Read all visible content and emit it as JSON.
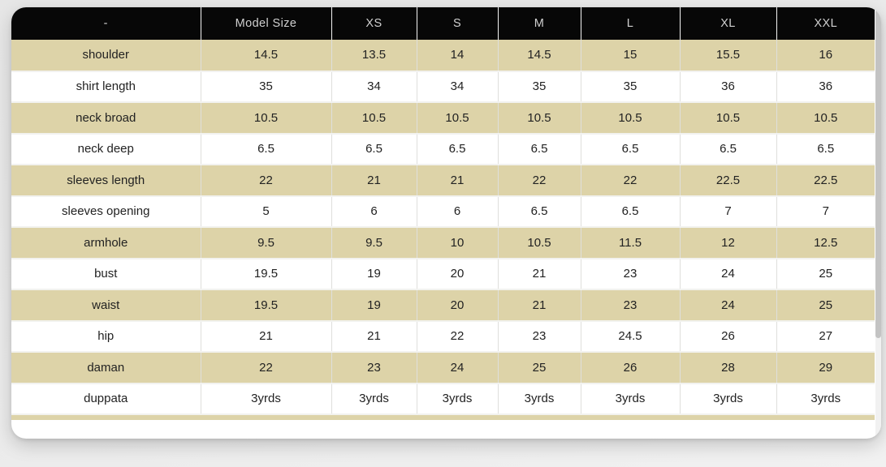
{
  "colors": {
    "header_bg": "#070707",
    "header_text": "#d0d0d0",
    "stripe": "#ddd3a8",
    "row_text": "#222222",
    "scrollbar_thumb": "#c3c3c3",
    "page_bg": "#ebebeb"
  },
  "size_chart": {
    "columns": [
      "-",
      "Model Size",
      "XS",
      "S",
      "M",
      "L",
      "XL",
      "XXL"
    ],
    "rows": [
      {
        "label": "shoulder",
        "values": [
          "14.5",
          "13.5",
          "14",
          "14.5",
          "15",
          "15.5",
          "16"
        ]
      },
      {
        "label": "shirt length",
        "values": [
          "35",
          "34",
          "34",
          "35",
          "35",
          "36",
          "36"
        ]
      },
      {
        "label": "neck broad",
        "values": [
          "10.5",
          "10.5",
          "10.5",
          "10.5",
          "10.5",
          "10.5",
          "10.5"
        ]
      },
      {
        "label": "neck deep",
        "values": [
          "6.5",
          "6.5",
          "6.5",
          "6.5",
          "6.5",
          "6.5",
          "6.5"
        ]
      },
      {
        "label": "sleeves length",
        "values": [
          "22",
          "21",
          "21",
          "22",
          "22",
          "22.5",
          "22.5"
        ]
      },
      {
        "label": "sleeves opening",
        "values": [
          "5",
          "6",
          "6",
          "6.5",
          "6.5",
          "7",
          "7"
        ]
      },
      {
        "label": "armhole",
        "values": [
          "9.5",
          "9.5",
          "10",
          "10.5",
          "11.5",
          "12",
          "12.5"
        ]
      },
      {
        "label": "bust",
        "values": [
          "19.5",
          "19",
          "20",
          "21",
          "23",
          "24",
          "25"
        ]
      },
      {
        "label": "waist",
        "values": [
          "19.5",
          "19",
          "20",
          "21",
          "23",
          "24",
          "25"
        ]
      },
      {
        "label": "hip",
        "values": [
          "21",
          "21",
          "22",
          "23",
          "24.5",
          "26",
          "27"
        ]
      },
      {
        "label": "daman",
        "values": [
          "22",
          "23",
          "24",
          "25",
          "26",
          "28",
          "29"
        ]
      },
      {
        "label": "duppata",
        "values": [
          "3yrds",
          "3yrds",
          "3yrds",
          "3yrds",
          "3yrds",
          "3yrds",
          "3yrds"
        ]
      }
    ]
  }
}
